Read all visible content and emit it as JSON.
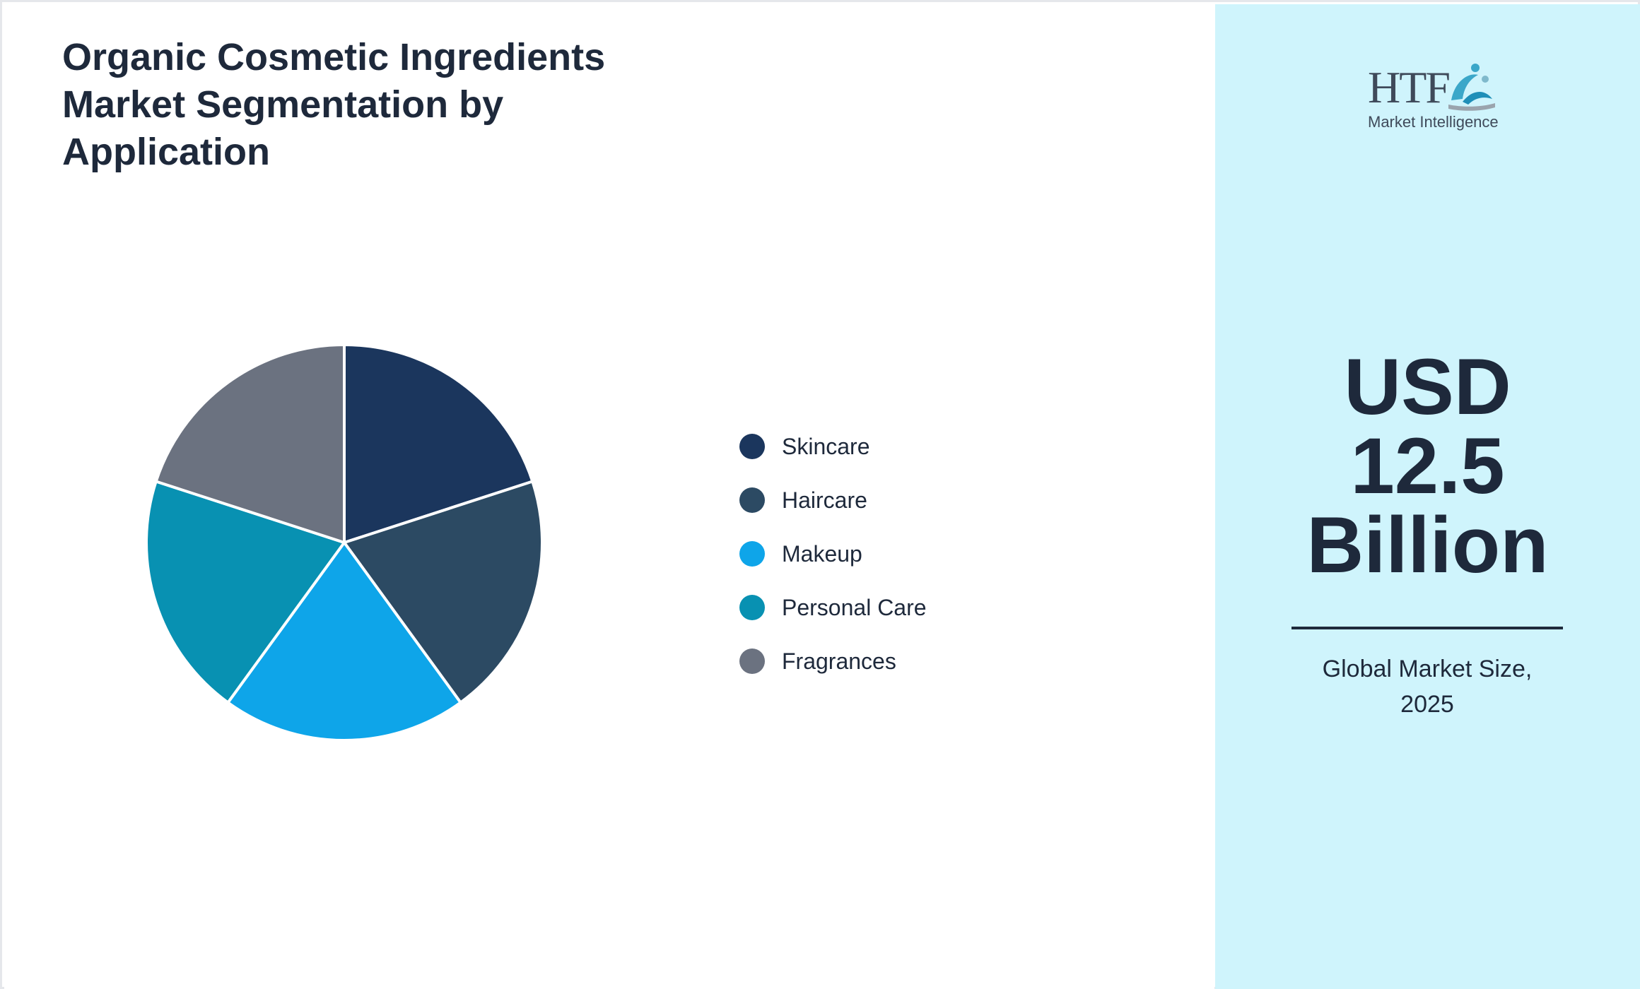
{
  "title": "Organic Cosmetic Ingredients Market Segmentation by Application",
  "chart_data": {
    "type": "pie",
    "title": "Organic Cosmetic Ingredients Market Segmentation by Application",
    "categories": [
      "Skincare",
      "Haircare",
      "Makeup",
      "Personal Care",
      "Fragrances"
    ],
    "values": [
      20,
      20,
      20,
      20,
      20
    ],
    "colors": [
      "#1b365d",
      "#2c4a63",
      "#0ea5e9",
      "#0891b2",
      "#6b7280"
    ],
    "legend_position": "right"
  },
  "legend": {
    "items": [
      {
        "label": "Skincare",
        "color": "#1b365d"
      },
      {
        "label": "Haircare",
        "color": "#2c4a63"
      },
      {
        "label": "Makeup",
        "color": "#0ea5e9"
      },
      {
        "label": "Personal Care",
        "color": "#0891b2"
      },
      {
        "label": "Fragrances",
        "color": "#6b7280"
      }
    ]
  },
  "logo": {
    "letters": "HTF",
    "subtitle": "Market Intelligence"
  },
  "market": {
    "size_line1": "USD",
    "size_line2": "12.5",
    "size_line3": "Billion",
    "caption_line1": "Global Market Size,",
    "caption_line2": "2025"
  },
  "colors": {
    "panel_background": "#cff4fc",
    "text": "#1e293b"
  }
}
